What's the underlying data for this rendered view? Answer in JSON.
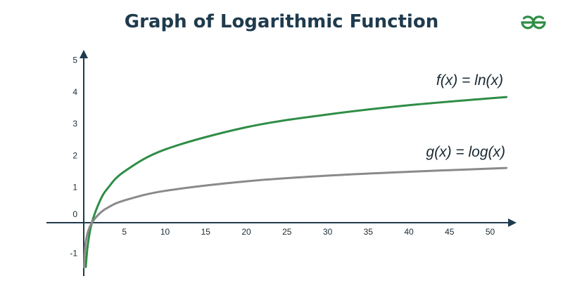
{
  "title": "Graph of Logarithmic Function",
  "logo": {
    "icon": "geeksforgeeks-logo-icon",
    "color": "#2f8d46"
  },
  "colors": {
    "axis": "#1f3a4d",
    "ln": "#2f8d46",
    "log": "#8a8a8a"
  },
  "chart_data": {
    "type": "line",
    "title": "Graph of Logarithmic Function",
    "xlabel": "",
    "ylabel": "",
    "xlim": [
      0,
      52
    ],
    "ylim": [
      -1.5,
      5.5
    ],
    "x_ticks": [
      5,
      10,
      15,
      20,
      25,
      30,
      35,
      40,
      45,
      50
    ],
    "x_tick_labels": [
      "5",
      "10",
      "15",
      "20",
      "25",
      "30",
      "35",
      "40",
      "45",
      "50"
    ],
    "y_ticks": [
      -1,
      0,
      1,
      2,
      3,
      4,
      5
    ],
    "y_tick_labels": [
      "-1",
      "0",
      "1",
      "2",
      "3",
      "4",
      "5"
    ],
    "grid": false,
    "legend": "none",
    "series": [
      {
        "label": "f(x) = ln(x)",
        "color": "#2f8d46",
        "x": [
          0.25,
          0.5,
          1,
          2,
          3,
          5,
          10,
          20,
          30,
          40,
          52
        ],
        "y": [
          -1.39,
          -0.69,
          0,
          0.69,
          1.1,
          1.61,
          2.3,
          3.0,
          3.4,
          3.69,
          3.95
        ]
      },
      {
        "label": "g(x) = log(x)",
        "color": "#8a8a8a",
        "x": [
          0.04,
          0.1,
          0.25,
          0.5,
          1,
          2,
          3,
          5,
          10,
          20,
          30,
          40,
          52
        ],
        "y": [
          -1.4,
          -1.0,
          -0.6,
          -0.3,
          0,
          0.3,
          0.48,
          0.7,
          1.0,
          1.3,
          1.48,
          1.6,
          1.72
        ]
      }
    ]
  }
}
